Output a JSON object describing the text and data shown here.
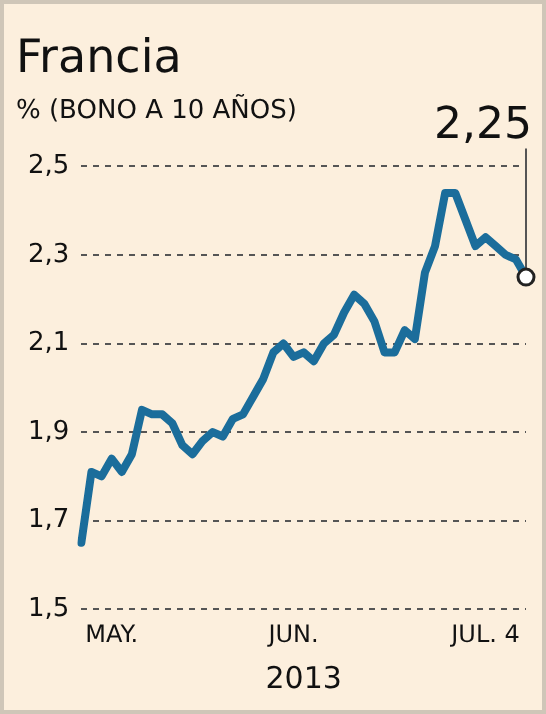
{
  "chart_data": {
    "type": "line",
    "title": "Francia",
    "subtitle": "% (BONO A 10 AÑOS)",
    "xlabel": "2013",
    "categories": [
      null,
      null,
      null,
      "MAY.",
      null,
      null,
      null,
      null,
      null,
      null,
      null,
      null,
      null,
      null,
      null,
      null,
      null,
      null,
      null,
      null,
      null,
      "JUN.",
      null,
      null,
      null,
      null,
      null,
      null,
      null,
      null,
      null,
      null,
      null,
      null,
      null,
      null,
      null,
      null,
      null,
      null,
      "JUL. 4",
      null,
      null,
      null,
      null
    ],
    "series": [
      {
        "color": "#1b6d9b",
        "values": [
          1.65,
          1.81,
          1.8,
          1.84,
          1.81,
          1.85,
          1.95,
          1.94,
          1.94,
          1.92,
          1.87,
          1.85,
          1.88,
          1.9,
          1.89,
          1.93,
          1.94,
          1.98,
          2.02,
          2.08,
          2.1,
          2.07,
          2.08,
          2.06,
          2.1,
          2.12,
          2.17,
          2.21,
          2.19,
          2.15,
          2.08,
          2.08,
          2.13,
          2.11,
          2.26,
          2.32,
          2.44,
          2.44,
          2.38,
          2.32,
          2.34,
          2.32,
          2.3,
          2.29,
          2.25
        ]
      }
    ],
    "ylim": [
      1.5,
      2.5
    ],
    "yticks": [
      {
        "value": 1.5,
        "label": "1,5"
      },
      {
        "value": 1.7,
        "label": "1,7"
      },
      {
        "value": 1.9,
        "label": "1,9"
      },
      {
        "value": 2.1,
        "label": "2,1"
      },
      {
        "value": 2.3,
        "label": "2,3"
      },
      {
        "value": 2.5,
        "label": "2,5"
      }
    ],
    "grid": "y",
    "legend": false,
    "line_style": "solid",
    "annotations": [
      "2,25"
    ]
  }
}
